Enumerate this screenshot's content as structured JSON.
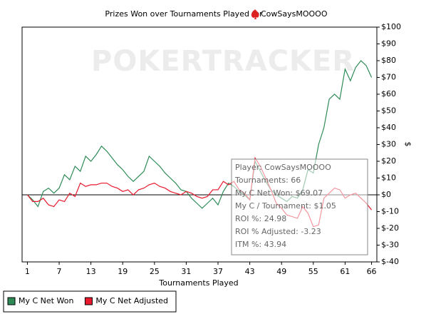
{
  "chart_data": {
    "type": "line",
    "title": "Prizes Won over Tournaments Played for",
    "title_player": "CowSaysMOOOO",
    "watermark": "POKERTRACKER",
    "x_label": "Tournaments Played",
    "y_label": "$",
    "x": [
      1,
      2,
      3,
      4,
      5,
      6,
      7,
      8,
      9,
      10,
      11,
      12,
      13,
      14,
      15,
      16,
      17,
      18,
      19,
      20,
      21,
      22,
      23,
      24,
      25,
      26,
      27,
      28,
      29,
      30,
      31,
      32,
      33,
      34,
      35,
      36,
      37,
      38,
      39,
      40,
      41,
      42,
      43,
      44,
      45,
      46,
      47,
      48,
      49,
      50,
      51,
      52,
      53,
      54,
      55,
      56,
      57,
      58,
      59,
      60,
      61,
      62,
      63,
      64,
      65,
      66
    ],
    "series": [
      {
        "name": "My C Net Won",
        "color": "#2e8b57",
        "values": [
          0,
          -3,
          -7,
          2,
          4,
          1,
          4,
          12,
          9,
          17,
          14,
          23,
          20,
          24,
          29,
          26,
          22,
          18,
          15,
          11,
          8,
          11,
          14,
          23,
          20,
          17,
          13,
          10,
          7,
          3,
          2,
          -2,
          -5,
          -8,
          -5,
          -2,
          -6,
          2,
          7,
          5,
          2,
          0,
          -3,
          20,
          14,
          8,
          3,
          0,
          -2,
          -4,
          -1,
          -2,
          3,
          15,
          13,
          30,
          40,
          57,
          60,
          57,
          75,
          68,
          76,
          80,
          77,
          70
        ]
      },
      {
        "name": "My C Net Adjusted",
        "color": "#e8192c",
        "values": [
          0,
          -4,
          -4,
          -2,
          -6,
          -7,
          -3,
          -4,
          1,
          -1,
          7,
          5,
          6,
          6,
          7,
          7,
          5,
          4,
          2,
          3,
          0,
          3,
          4,
          6,
          7,
          5,
          4,
          2,
          1,
          0,
          2,
          1,
          -1,
          -2,
          -1,
          3,
          3,
          8,
          6,
          8,
          3,
          1,
          -3,
          22,
          17,
          10,
          3,
          -5,
          -8,
          -12,
          -13,
          -14,
          -7,
          -11,
          -19,
          -18,
          -2,
          1,
          4,
          3,
          -2,
          0,
          1,
          -2,
          -5,
          -9
        ]
      }
    ],
    "xlim": [
      0,
      67
    ],
    "xticks": [
      1,
      7,
      13,
      19,
      25,
      31,
      37,
      43,
      49,
      55,
      61,
      66
    ],
    "ylim": [
      -40,
      100
    ],
    "yticks": [
      {
        "value": -40,
        "label": "$-40"
      },
      {
        "value": -30,
        "label": "$-30"
      },
      {
        "value": -20,
        "label": "$-20"
      },
      {
        "value": -10,
        "label": "$-10"
      },
      {
        "value": 0,
        "label": "$0"
      },
      {
        "value": 10,
        "label": "$10"
      },
      {
        "value": 20,
        "label": "$20"
      },
      {
        "value": 30,
        "label": "$30"
      },
      {
        "value": 40,
        "label": "$40"
      },
      {
        "value": 50,
        "label": "$50"
      },
      {
        "value": 60,
        "label": "$60"
      },
      {
        "value": 70,
        "label": "$70"
      },
      {
        "value": 80,
        "label": "$80"
      },
      {
        "value": 90,
        "label": "$90"
      },
      {
        "value": 100,
        "label": "$100"
      }
    ],
    "annotation": [
      "Player: CowSaysMOOOO",
      "Tournaments: 66",
      "My C Net Won: $69.07",
      "My C / Tournament: $1.05",
      "ROI %: 24.98",
      "ROI % Adjusted: -3.23",
      "ITM %: 43.94"
    ],
    "grid": false,
    "legend": "bottom-left"
  }
}
